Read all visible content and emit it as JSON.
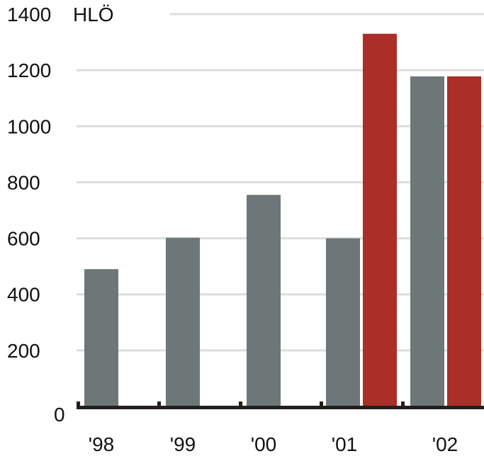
{
  "chart_data": {
    "type": "bar",
    "unit_label": "HLÖ",
    "categories": [
      "'98",
      "'99",
      "'00",
      "'01",
      "'02"
    ],
    "series": [
      {
        "values": [
          490,
          602,
          755,
          600,
          1178
        ],
        "color": "#6d7777"
      },
      {
        "values": [
          null,
          null,
          null,
          1330,
          1178
        ],
        "color": "#ab2e28"
      }
    ],
    "yticks": [
      0,
      200,
      400,
      600,
      800,
      1000,
      1200,
      1400
    ],
    "ylim": [
      0,
      1400
    ],
    "grid": true,
    "colors": {
      "grid": "#dddddd",
      "axis": "#231f1c",
      "text": "#111111"
    }
  }
}
